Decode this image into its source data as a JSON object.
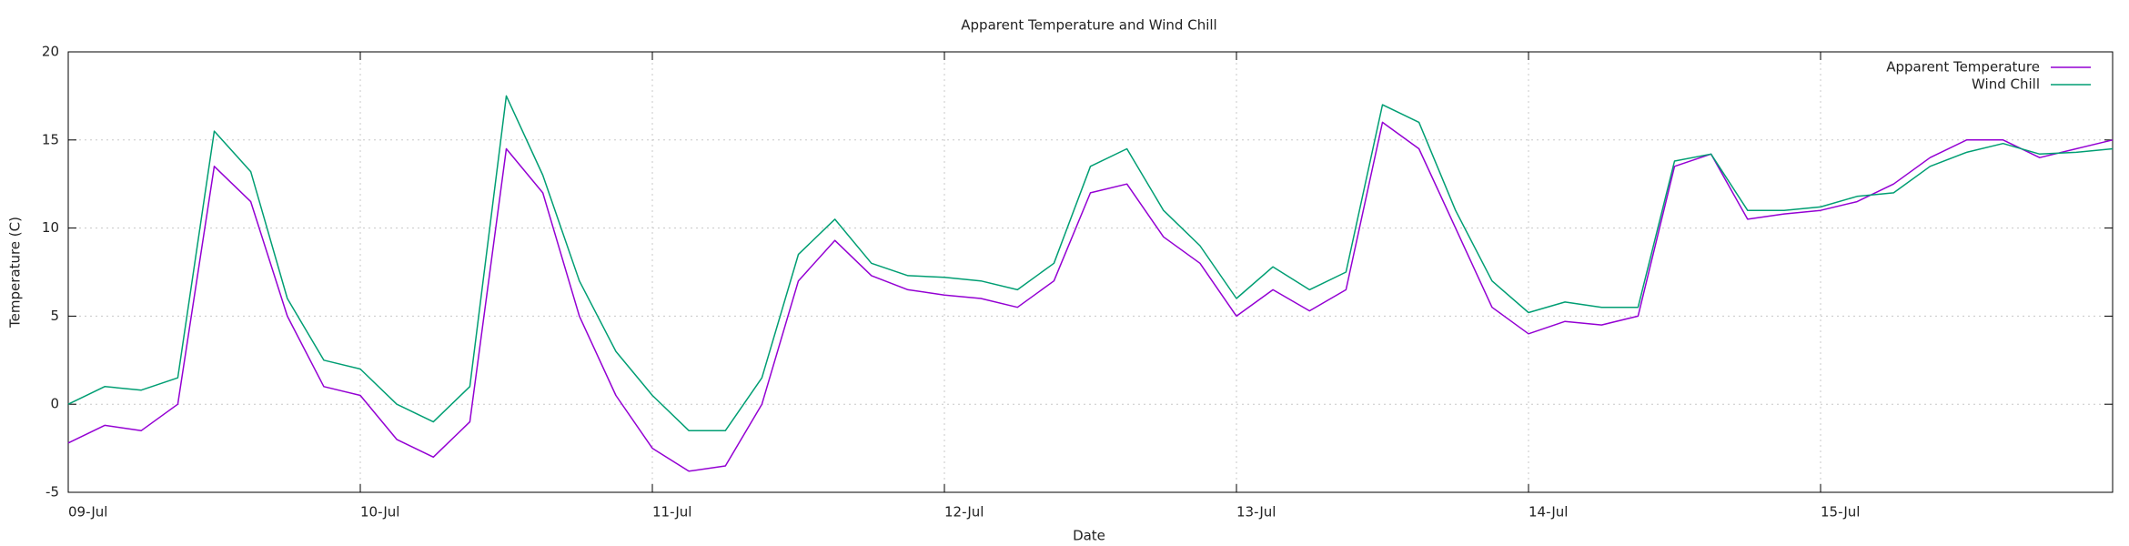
{
  "chart_data": {
    "type": "line",
    "title": "Apparent Temperature and Wind Chill",
    "xlabel": "Date",
    "ylabel": "Temperature (C)",
    "x": [
      0,
      0.125,
      0.25,
      0.375,
      0.5,
      0.625,
      0.75,
      0.875,
      1,
      1.125,
      1.25,
      1.375,
      1.5,
      1.625,
      1.75,
      1.875,
      2,
      2.125,
      2.25,
      2.375,
      2.5,
      2.625,
      2.75,
      2.875,
      3,
      3.125,
      3.25,
      3.375,
      3.5,
      3.625,
      3.75,
      3.875,
      4,
      4.125,
      4.25,
      4.375,
      4.5,
      4.625,
      4.75,
      4.875,
      5,
      5.125,
      5.25,
      5.375,
      5.5,
      5.625,
      5.75,
      5.875,
      6,
      6.125,
      6.25,
      6.375,
      6.5,
      6.625,
      6.75,
      6.875,
      7
    ],
    "series": [
      {
        "name": "Apparent Temperature",
        "color": "#9400d3",
        "values": [
          -2.2,
          -1.2,
          -1.5,
          0,
          13.5,
          11.5,
          5,
          1,
          0.5,
          -2,
          -3,
          -1,
          14.5,
          12,
          5,
          0.5,
          -2.5,
          -3.8,
          -3.5,
          0,
          7,
          9.3,
          7.3,
          6.5,
          6.2,
          6,
          5.5,
          7,
          12,
          12.5,
          9.5,
          8,
          5,
          6.5,
          5.3,
          6.5,
          16,
          14.5,
          10,
          5.5,
          4,
          4.7,
          4.5,
          5,
          13.5,
          14.2,
          10.5,
          10.8,
          11,
          11.5,
          12.5,
          14,
          15,
          15,
          14,
          14.5,
          15
        ]
      },
      {
        "name": "Wind Chill",
        "color": "#009e73",
        "values": [
          0,
          1,
          0.8,
          1.5,
          15.5,
          13.2,
          6,
          2.5,
          2,
          0,
          -1,
          1,
          17.5,
          13,
          7,
          3,
          0.5,
          -1.5,
          -1.5,
          1.5,
          8.5,
          10.5,
          8,
          7.3,
          7.2,
          7,
          6.5,
          8,
          13.5,
          14.5,
          11,
          9,
          6,
          7.8,
          6.5,
          7.5,
          17,
          16,
          11,
          7,
          5.2,
          5.8,
          5.5,
          5.5,
          13.8,
          14.2,
          11,
          11,
          11.2,
          11.8,
          12,
          13.5,
          14.3,
          14.8,
          14.2,
          14.3,
          14.5
        ]
      }
    ],
    "xlim": [
      0,
      7
    ],
    "xticks": [
      {
        "value": 0,
        "label": "09-Jul"
      },
      {
        "value": 1,
        "label": "10-Jul"
      },
      {
        "value": 2,
        "label": "11-Jul"
      },
      {
        "value": 3,
        "label": "12-Jul"
      },
      {
        "value": 4,
        "label": "13-Jul"
      },
      {
        "value": 5,
        "label": "14-Jul"
      },
      {
        "value": 6,
        "label": "15-Jul"
      }
    ],
    "ylim": [
      -5,
      20
    ],
    "yticks": [
      -5,
      0,
      5,
      10,
      15,
      20
    ],
    "grid": true,
    "legend": "top-right"
  }
}
